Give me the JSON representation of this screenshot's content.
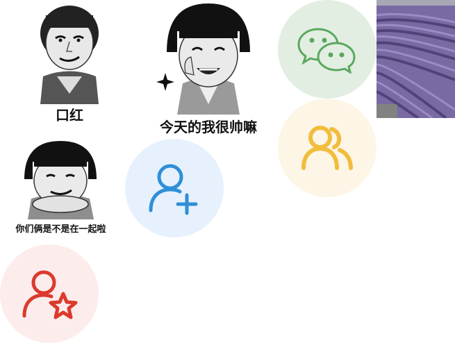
{
  "memes": [
    {
      "caption": "口红"
    },
    {
      "caption": "今天的我很帅嘛"
    },
    {
      "caption": "你们俩是不是在一起啦"
    }
  ],
  "icons": {
    "wechat": {
      "name": "wechat-icon",
      "bg": "#e3eee3",
      "color": "#5aa85e"
    },
    "group": {
      "name": "group-icon",
      "bg": "#fdf6e6",
      "color": "#f1bd3c"
    },
    "add_user": {
      "name": "add-user-icon",
      "bg": "#e6f1fd",
      "color": "#2f8fd8"
    },
    "fav_user": {
      "name": "user-star-icon",
      "bg": "#fdecec",
      "color": "#db3a2c"
    }
  },
  "photo": {
    "subject": "lavender-field"
  }
}
